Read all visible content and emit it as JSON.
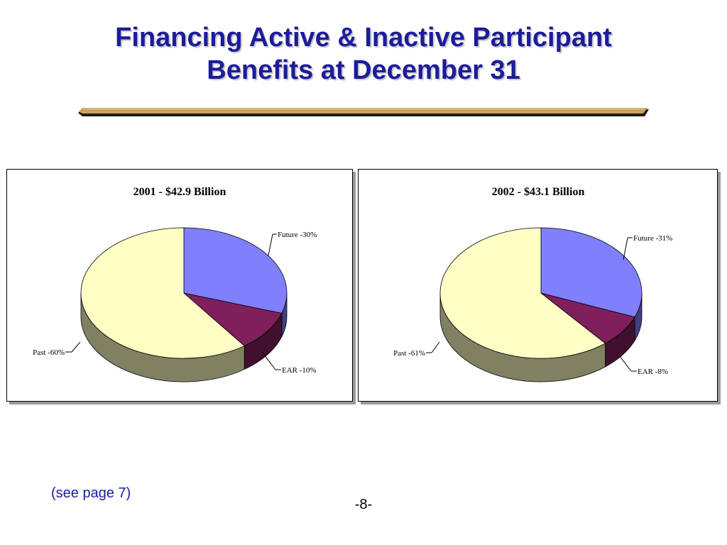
{
  "slide": {
    "title_line1": "Financing Active & Inactive Participant",
    "title_line2": "Benefits at December 31",
    "footnote": "(see page 7)",
    "page_number": "-8-"
  },
  "colors": {
    "title": "#1c1c9c",
    "rule_gold": "#c9a25a",
    "rule_shadow": "#1a1a1a",
    "slice_future": "#8080ff",
    "slice_ear": "#7f1f5c",
    "slice_past": "#ffffc5"
  },
  "chart_data": [
    {
      "type": "pie",
      "title": "2001 - $42.9 Billion",
      "labels": [
        "Future -30%",
        "EAR -10%",
        "Past -60%"
      ],
      "values": [
        30,
        10,
        60
      ],
      "colors": [
        "#8080ff",
        "#7f1f5c",
        "#ffffc5"
      ],
      "legend": "none",
      "style": "3d"
    },
    {
      "type": "pie",
      "title": "2002 - $43.1 Billion",
      "labels": [
        "Future -31%",
        "EAR -8%",
        "Past -61%"
      ],
      "values": [
        31,
        8,
        61
      ],
      "colors": [
        "#8080ff",
        "#7f1f5c",
        "#ffffc5"
      ],
      "legend": "none",
      "style": "3d"
    }
  ]
}
